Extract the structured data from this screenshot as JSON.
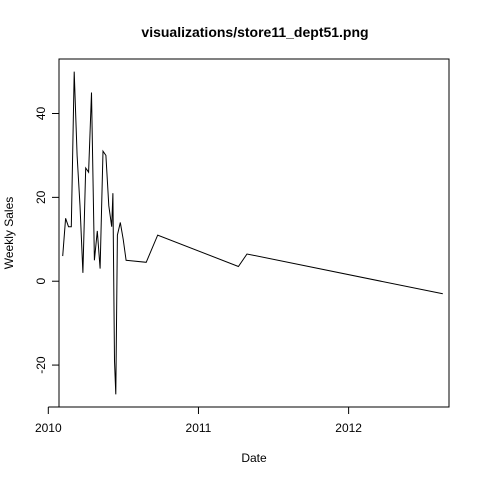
{
  "chart_data": {
    "type": "line",
    "title": "visualizations/store11_dept51.png",
    "xlabel": "Date",
    "ylabel": "Weekly Sales",
    "xlim": [
      "2010-01-27",
      "2012-09-01"
    ],
    "ylim": [
      -30,
      53
    ],
    "x_ticks": [
      {
        "value": "2010-01-01",
        "label": "2010"
      },
      {
        "value": "2011-01-01",
        "label": "2011"
      },
      {
        "value": "2012-01-01",
        "label": "2012"
      }
    ],
    "y_ticks": [
      {
        "value": -20,
        "label": "-20"
      },
      {
        "value": 0,
        "label": "0"
      },
      {
        "value": 20,
        "label": "20"
      },
      {
        "value": 40,
        "label": "40"
      }
    ],
    "grid": false,
    "series": [
      {
        "color": "#000000",
        "points": [
          {
            "x": "2010-02-05",
            "y": 6
          },
          {
            "x": "2010-02-12",
            "y": 15
          },
          {
            "x": "2010-02-19",
            "y": 13
          },
          {
            "x": "2010-02-26",
            "y": 13
          },
          {
            "x": "2010-03-05",
            "y": 50
          },
          {
            "x": "2010-03-12",
            "y": 30
          },
          {
            "x": "2010-03-19",
            "y": 18
          },
          {
            "x": "2010-03-26",
            "y": 2
          },
          {
            "x": "2010-04-02",
            "y": 27
          },
          {
            "x": "2010-04-09",
            "y": 26
          },
          {
            "x": "2010-04-16",
            "y": 45
          },
          {
            "x": "2010-04-23",
            "y": 5
          },
          {
            "x": "2010-04-30",
            "y": 12
          },
          {
            "x": "2010-05-07",
            "y": 3
          },
          {
            "x": "2010-05-14",
            "y": 31
          },
          {
            "x": "2010-05-21",
            "y": 30
          },
          {
            "x": "2010-05-28",
            "y": 18
          },
          {
            "x": "2010-06-04",
            "y": 13
          },
          {
            "x": "2010-06-07",
            "y": 21
          },
          {
            "x": "2010-06-11",
            "y": -19
          },
          {
            "x": "2010-06-14",
            "y": -27
          },
          {
            "x": "2010-06-18",
            "y": 11
          },
          {
            "x": "2010-06-25",
            "y": 14
          },
          {
            "x": "2010-07-02",
            "y": 10
          },
          {
            "x": "2010-07-09",
            "y": 5
          },
          {
            "x": "2010-08-27",
            "y": 4.5
          },
          {
            "x": "2010-09-24",
            "y": 11
          },
          {
            "x": "2011-04-08",
            "y": 3.5
          },
          {
            "x": "2011-04-29",
            "y": 6.5
          },
          {
            "x": "2012-08-17",
            "y": -3
          }
        ]
      }
    ]
  }
}
